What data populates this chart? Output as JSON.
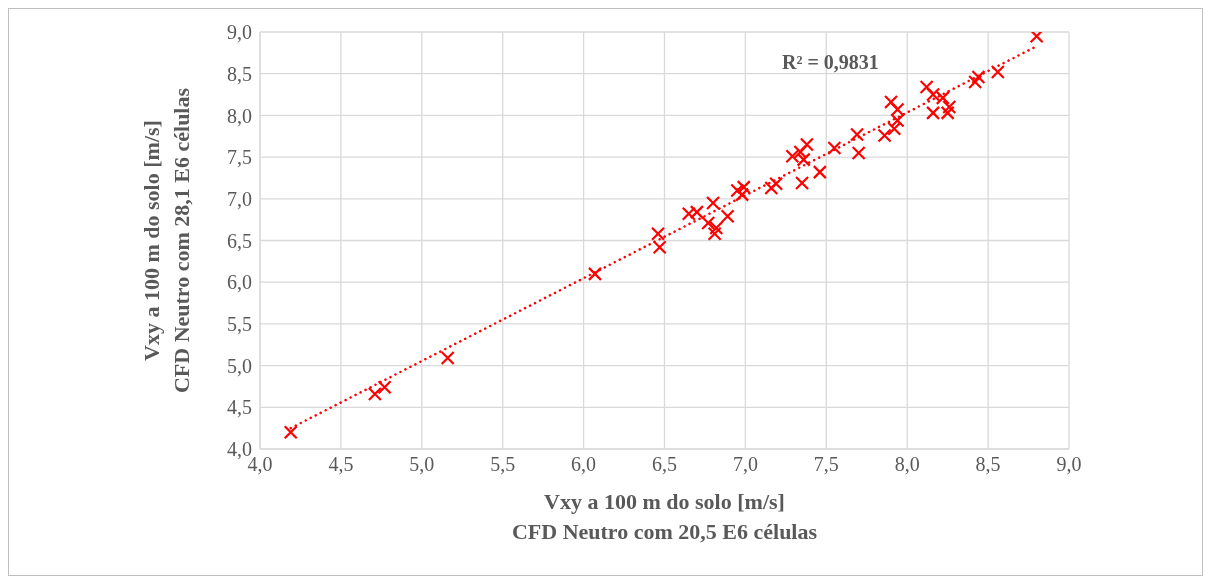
{
  "chart_data": {
    "type": "scatter",
    "xlabel": "Vxy a 100 m do solo [m/s]\nCFD Neutro com 20,5 E6 células",
    "ylabel": "Vxy a 100 m do solo [m/s]\nCFD Neutro com 28,1 E6 células",
    "annotations": [
      "R² = 0,9831"
    ],
    "series": [
      {
        "color": "#ff0000",
        "marker": "cross",
        "x": [
          4.19,
          4.71,
          4.77,
          5.16,
          6.07,
          6.46,
          6.47,
          6.65,
          6.7,
          6.8,
          6.77,
          6.82,
          6.81,
          6.89,
          6.95,
          6.99,
          6.98,
          7.16,
          7.19,
          7.35,
          7.46,
          7.29,
          7.34,
          7.38,
          7.36,
          7.55,
          7.69,
          7.7,
          7.86,
          7.92,
          7.94,
          7.94,
          7.9,
          8.12,
          8.16,
          8.22,
          8.26,
          8.25,
          8.16,
          8.42,
          8.44,
          8.56,
          8.8
        ],
        "values": [
          4.2,
          4.66,
          4.74,
          5.09,
          6.1,
          6.58,
          6.42,
          6.82,
          6.84,
          6.95,
          6.71,
          6.65,
          6.58,
          6.79,
          7.1,
          7.14,
          7.05,
          7.13,
          7.18,
          7.19,
          7.32,
          7.51,
          7.56,
          7.65,
          7.47,
          7.61,
          7.77,
          7.55,
          7.76,
          7.84,
          7.94,
          8.07,
          8.16,
          8.34,
          8.25,
          8.21,
          8.1,
          8.03,
          8.03,
          8.4,
          8.46,
          8.52,
          8.95
        ]
      },
      {
        "type": "line",
        "color": "#ff0000",
        "marker": "none",
        "line_style": "dotted",
        "x": [
          4.19,
          8.8
        ],
        "values": [
          4.25,
          8.83
        ]
      }
    ],
    "xlim": [
      4.0,
      9.0
    ],
    "xticks": [
      {
        "value": 4.0,
        "label": "4,0"
      },
      {
        "value": 4.5,
        "label": "4,5"
      },
      {
        "value": 5.0,
        "label": "5,0"
      },
      {
        "value": 5.5,
        "label": "5,5"
      },
      {
        "value": 6.0,
        "label": "6,0"
      },
      {
        "value": 6.5,
        "label": "6,5"
      },
      {
        "value": 7.0,
        "label": "7,0"
      },
      {
        "value": 7.5,
        "label": "7,5"
      },
      {
        "value": 8.0,
        "label": "8,0"
      },
      {
        "value": 8.5,
        "label": "8,5"
      },
      {
        "value": 9.0,
        "label": "9,0"
      }
    ],
    "ylim": [
      4.0,
      9.0
    ],
    "yticks": [
      {
        "value": 4.0,
        "label": "4,0"
      },
      {
        "value": 4.5,
        "label": "4,5"
      },
      {
        "value": 5.0,
        "label": "5,0"
      },
      {
        "value": 5.5,
        "label": "5,5"
      },
      {
        "value": 6.0,
        "label": "6,0"
      },
      {
        "value": 6.5,
        "label": "6,5"
      },
      {
        "value": 7.0,
        "label": "7,0"
      },
      {
        "value": 7.5,
        "label": "7,5"
      },
      {
        "value": 8.0,
        "label": "8,0"
      },
      {
        "value": 8.5,
        "label": "8,5"
      },
      {
        "value": 9.0,
        "label": "9,0"
      }
    ],
    "grid": true
  }
}
